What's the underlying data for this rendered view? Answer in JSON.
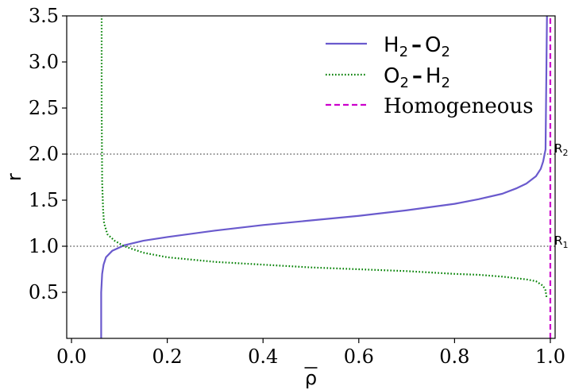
{
  "chart_data": {
    "type": "line",
    "xlabel": "ρ",
    "ylabel": "r",
    "xlim": [
      -0.01,
      1.01
    ],
    "ylim": [
      0.0,
      3.5
    ],
    "xticks": [
      "0.0",
      "0.2",
      "0.4",
      "0.6",
      "0.8",
      "1.0"
    ],
    "xtick_values": [
      0.0,
      0.2,
      0.4,
      0.6,
      0.8,
      1.0
    ],
    "yticks": [
      "0.5",
      "1.0",
      "1.5",
      "2.0",
      "2.5",
      "3.0",
      "3.5"
    ],
    "ytick_values": [
      0.5,
      1.0,
      1.5,
      2.0,
      2.5,
      3.0,
      3.5
    ],
    "legend_position": "top-right",
    "reference_lines": [
      {
        "y": 1.0,
        "label": "R",
        "subscript": "1",
        "style": "dotted",
        "color": "#808080"
      },
      {
        "y": 2.0,
        "label": "R",
        "subscript": "2",
        "style": "dotted",
        "color": "#808080"
      }
    ],
    "series": [
      {
        "name": "H₂ – O₂",
        "legend_main": [
          "H",
          "O"
        ],
        "legend_sub": [
          "2",
          "2"
        ],
        "color": "#6a5acd",
        "style": "solid",
        "x": [
          0.062,
          0.062,
          0.063,
          0.064,
          0.067,
          0.072,
          0.085,
          0.11,
          0.15,
          0.2,
          0.3,
          0.4,
          0.5,
          0.6,
          0.7,
          0.8,
          0.85,
          0.9,
          0.93,
          0.95,
          0.97,
          0.98,
          0.985,
          0.99,
          0.993
        ],
        "y": [
          0.0,
          0.5,
          0.6,
          0.7,
          0.8,
          0.88,
          0.95,
          1.01,
          1.06,
          1.1,
          1.17,
          1.23,
          1.28,
          1.33,
          1.39,
          1.46,
          1.51,
          1.57,
          1.63,
          1.68,
          1.76,
          1.84,
          1.92,
          2.05,
          3.5
        ]
      },
      {
        "name": "O₂ – H₂",
        "legend_main": [
          "O",
          "H"
        ],
        "legend_sub": [
          "2",
          "2"
        ],
        "color": "#008000",
        "style": "dotted",
        "x": [
          0.992,
          0.99,
          0.985,
          0.97,
          0.95,
          0.9,
          0.85,
          0.8,
          0.7,
          0.6,
          0.5,
          0.4,
          0.3,
          0.2,
          0.15,
          0.11,
          0.09,
          0.075,
          0.068,
          0.066,
          0.064,
          0.063,
          0.063
        ],
        "y": [
          0.45,
          0.52,
          0.57,
          0.62,
          0.64,
          0.67,
          0.69,
          0.7,
          0.73,
          0.75,
          0.77,
          0.8,
          0.83,
          0.88,
          0.93,
          1.0,
          1.06,
          1.13,
          1.25,
          1.4,
          1.7,
          2.5,
          3.5
        ]
      },
      {
        "name": "Homogeneous",
        "color": "#cc00cc",
        "style": "dashed",
        "x": [
          1.0,
          1.0
        ],
        "y": [
          0.0,
          3.5
        ]
      }
    ]
  }
}
